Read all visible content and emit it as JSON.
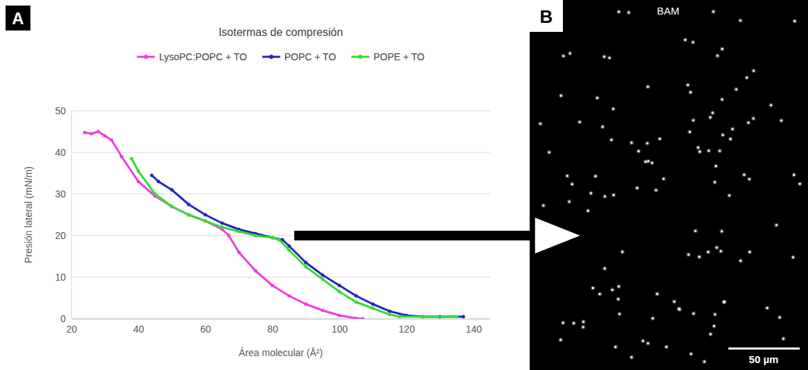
{
  "chart_data": {
    "type": "line",
    "panel_label": "A",
    "title": "Isotermas de compresión",
    "x_label": "Área molecular (Å²)",
    "y_label": "Presión lateral (mN/m)",
    "xlim": [
      20,
      145
    ],
    "xticks": [
      20,
      40,
      60,
      80,
      100,
      120,
      140
    ],
    "ylim": [
      0,
      50
    ],
    "yticks": [
      0,
      10,
      20,
      30,
      40,
      50
    ],
    "grid": true,
    "legend": "top",
    "marker": "circle",
    "series": [
      {
        "name": "LysoPC:POPC + TO",
        "color": "#ee3fd6",
        "x": [
          24,
          26,
          28,
          30,
          32,
          35,
          40,
          45,
          50,
          55,
          60,
          65,
          67,
          70,
          75,
          80,
          85,
          90,
          95,
          100,
          105,
          107
        ],
        "values": [
          44.8,
          44.5,
          45,
          44,
          43,
          39,
          33,
          29.5,
          27,
          25,
          23.5,
          21.5,
          20,
          16,
          11.5,
          8,
          5.5,
          3.5,
          2,
          0.8,
          0.1,
          0
        ]
      },
      {
        "name": "POPC + TO",
        "color": "#2424c4",
        "x": [
          44,
          46,
          50,
          55,
          60,
          65,
          70,
          75,
          80,
          83,
          85,
          90,
          95,
          100,
          105,
          110,
          115,
          120,
          125,
          130,
          137
        ],
        "values": [
          34.5,
          33,
          31,
          27.5,
          25,
          23,
          21.5,
          20.5,
          19.5,
          19,
          17.5,
          13.5,
          10.5,
          8,
          5.5,
          3.5,
          1.8,
          0.8,
          0.5,
          0.5,
          0.5
        ]
      },
      {
        "name": "POPE + TO",
        "color": "#33dd33",
        "x": [
          38,
          40,
          45,
          50,
          55,
          60,
          65,
          70,
          75,
          80,
          82,
          85,
          90,
          95,
          100,
          105,
          110,
          115,
          118,
          125,
          135
        ],
        "values": [
          38.5,
          35.5,
          30,
          27,
          25,
          23.5,
          22,
          21,
          20,
          19.5,
          19,
          16.5,
          12.5,
          9.5,
          6.5,
          4,
          2.5,
          1,
          0.5,
          0.5,
          0.5
        ]
      }
    ]
  },
  "image": {
    "panel_label": "B",
    "title": "BAM",
    "scale_bar": "50 µm"
  }
}
